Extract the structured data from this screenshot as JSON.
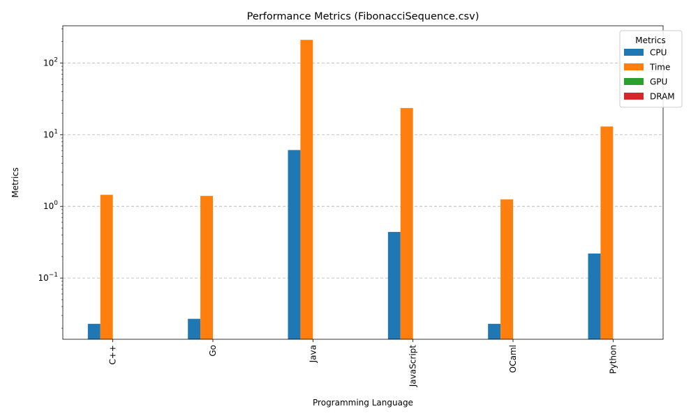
{
  "chart_data": {
    "type": "bar",
    "title": "Performance Metrics (FibonacciSequence.csv)",
    "xlabel": "Programming Language",
    "ylabel": "Metrics",
    "yscale": "log",
    "ylim": [
      0.014,
      330
    ],
    "yticks": [
      {
        "value": 0.1,
        "base": "10",
        "exp": "−1"
      },
      {
        "value": 1,
        "base": "10",
        "exp": "0"
      },
      {
        "value": 10,
        "base": "10",
        "exp": "1"
      },
      {
        "value": 100,
        "base": "10",
        "exp": "2"
      }
    ],
    "grid": "y-dashed",
    "categories": [
      "C++",
      "Go",
      "Java",
      "JavaScript",
      "OCaml",
      "Python"
    ],
    "series": [
      {
        "name": "CPU",
        "color": "#1f77b4",
        "values": [
          0.023,
          0.027,
          6.1,
          0.44,
          0.023,
          0.22
        ]
      },
      {
        "name": "Time",
        "color": "#ff7f0e",
        "values": [
          1.45,
          1.4,
          210,
          23.5,
          1.25,
          13
        ]
      },
      {
        "name": "GPU",
        "color": "#2ca02c",
        "values": [
          null,
          null,
          null,
          null,
          null,
          null
        ]
      },
      {
        "name": "DRAM",
        "color": "#d62728",
        "values": [
          null,
          null,
          null,
          null,
          null,
          null
        ]
      }
    ],
    "legend": {
      "title": "Metrics",
      "position": "top-right"
    }
  }
}
